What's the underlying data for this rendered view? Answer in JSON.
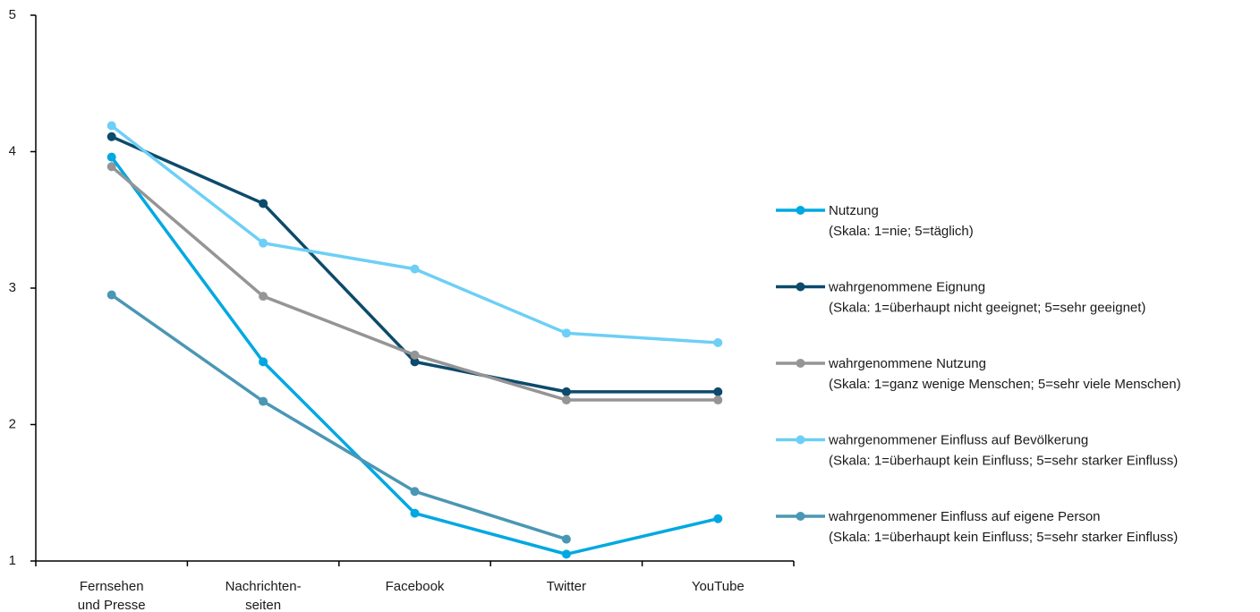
{
  "chart_data": {
    "type": "line",
    "categories": [
      [
        "Fernsehen",
        "und Presse"
      ],
      [
        "Nachrichten-",
        "seiten"
      ],
      [
        "Facebook"
      ],
      [
        "Twitter"
      ],
      [
        "YouTube"
      ]
    ],
    "yticks": [
      "1",
      "2",
      "3",
      "4",
      "5"
    ],
    "ylim": [
      1,
      5
    ],
    "grid": false,
    "legend_position": "right",
    "series": [
      {
        "name": "Nutzung",
        "note": "(Skala: 1=nie; 5=täglich)",
        "color": "#00a8e1",
        "values": [
          3.96,
          2.46,
          1.35,
          1.05,
          1.31
        ]
      },
      {
        "name": "wahrgenommene Eignung",
        "note": "(Skala: 1=überhaupt nicht geeignet; 5=sehr geeignet)",
        "color": "#0d4a6b",
        "values": [
          4.11,
          3.62,
          2.46,
          2.24,
          2.24
        ]
      },
      {
        "name": "wahrgenommene Nutzung",
        "note": "(Skala: 1=ganz wenige Menschen; 5=sehr viele Menschen)",
        "color": "#959595",
        "values": [
          3.89,
          2.94,
          2.51,
          2.18,
          2.18
        ]
      },
      {
        "name": "wahrgenommener Einfluss auf Bevölkerung",
        "note": "(Skala: 1=überhaupt kein Einfluss; 5=sehr starker Einfluss)",
        "color": "#6dcff6",
        "values": [
          4.19,
          3.33,
          3.14,
          2.67,
          2.6
        ]
      },
      {
        "name": "wahrgenommener Einfluss auf eigene Person",
        "note": "(Skala: 1=überhaupt kein Einfluss; 5=sehr starker Einfluss)",
        "color": "#4a97b4",
        "values": [
          2.95,
          2.17,
          1.51,
          1.16,
          null
        ]
      }
    ]
  }
}
